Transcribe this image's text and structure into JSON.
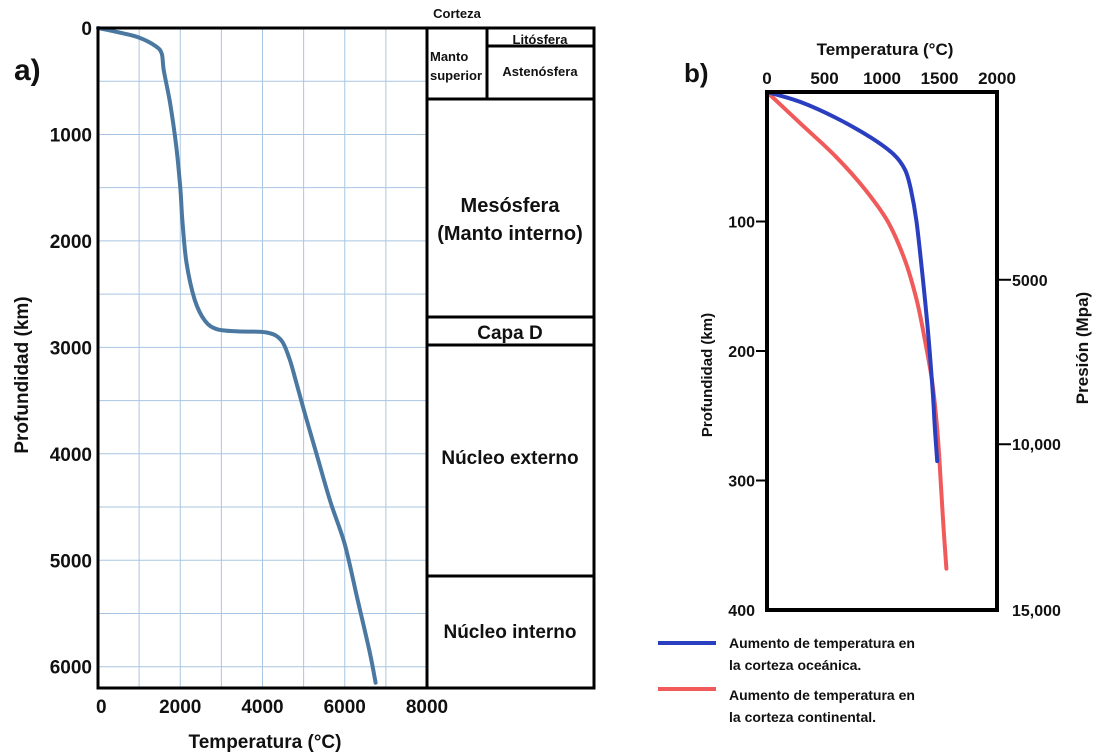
{
  "chart_data": [
    {
      "type": "line",
      "panel_label": "a)",
      "xlabel": "Temperatura (°C)",
      "ylabel": "Profundidad (km)",
      "xlim": [
        0,
        8000
      ],
      "ylim": [
        0,
        6200
      ],
      "y_inverted": true,
      "x_ticks": [
        "0",
        "2000",
        "4000",
        "6000",
        "8000"
      ],
      "y_ticks": [
        "0",
        "1000",
        "2000",
        "3000",
        "4000",
        "5000",
        "6000"
      ],
      "grid": true,
      "line_color": "#4a78a0",
      "grid_color": "#a9c5e2",
      "series": [
        {
          "x": [
            0,
            500,
            1000,
            1400,
            1550,
            1600,
            1750,
            1900,
            2000,
            2050,
            2150,
            2350,
            2600,
            2900,
            3400,
            4100,
            4450,
            4650,
            4800,
            5050,
            5350,
            5650,
            6000,
            6300,
            6600,
            6750
          ],
          "y": [
            0,
            40,
            90,
            170,
            240,
            400,
            700,
            1100,
            1500,
            1800,
            2200,
            2550,
            2750,
            2830,
            2850,
            2860,
            2930,
            3100,
            3300,
            3650,
            4050,
            4450,
            4850,
            5350,
            5850,
            6150
          ]
        }
      ],
      "layers": [
        {
          "name": "Corteza",
          "top": 0,
          "bottom": 5
        },
        {
          "name": "Litósfera",
          "top": 0,
          "bottom": 180
        },
        {
          "name": "Astenósfera",
          "top": 180,
          "bottom": 670
        },
        {
          "name": "Manto superior",
          "top": 0,
          "bottom": 670
        },
        {
          "name": "Mesósfera (Manto interno)",
          "top": 670,
          "bottom": 2700
        },
        {
          "name": "Capa D",
          "top": 2700,
          "bottom": 2950
        },
        {
          "name": "Núcleo externo",
          "top": 2950,
          "bottom": 5150
        },
        {
          "name": "Núcleo interno",
          "top": 5150,
          "bottom": 6200
        }
      ],
      "layer_labels": {
        "corteza": "Corteza",
        "litosfera": "Litósfera",
        "manto_1": "Manto",
        "manto_2": "superior",
        "astenosfera": "Astenósfera",
        "mesosfera_1": "Mesósfera",
        "mesosfera_2": "(Manto interno)",
        "capa_d": "Capa D",
        "nucleo_externo": "Núcleo externo",
        "nucleo_interno": "Núcleo interno"
      }
    },
    {
      "type": "line",
      "panel_label": "b)",
      "xlabel": "Temperatura (°C)",
      "ylabel": "Profundidad (km)",
      "y2label": "Presión (Mpa)",
      "xlim": [
        0,
        2000
      ],
      "ylim": [
        0,
        400
      ],
      "y_inverted": true,
      "x_ticks": [
        "0",
        "500",
        "1000",
        "1500",
        "2000"
      ],
      "y_ticks": [
        "100",
        "200",
        "300",
        "400"
      ],
      "y2_ticks": [
        {
          "label": "5000",
          "depth": 145
        },
        {
          "label": "10,000",
          "depth": 272
        },
        {
          "label": "15,000",
          "depth": 400
        }
      ],
      "x_axis_position": "top",
      "grid": false,
      "legend_position": "bottom",
      "series": [
        {
          "name": "Aumento de temperatura en la corteza oceánica.",
          "legend_line1": "Aumento de temperatura en",
          "legend_line2": "la corteza oceánica.",
          "color": "#2a3fbf",
          "x": [
            0,
            300,
            600,
            900,
            1100,
            1200,
            1250,
            1300,
            1350,
            1400,
            1440,
            1460,
            1480
          ],
          "y": [
            0,
            8,
            20,
            35,
            48,
            60,
            75,
            100,
            140,
            185,
            230,
            260,
            285
          ]
        },
        {
          "name": "Aumento de temperatura en la corteza continental.",
          "legend_line1": "Aumento de temperatura en",
          "legend_line2": "la corteza continental.",
          "color": "#f05a5a",
          "x": [
            0,
            300,
            600,
            850,
            1050,
            1200,
            1300,
            1370,
            1430,
            1470,
            1500,
            1530,
            1560
          ],
          "y": [
            0,
            25,
            50,
            75,
            100,
            130,
            160,
            190,
            220,
            250,
            285,
            330,
            368
          ]
        }
      ]
    }
  ]
}
